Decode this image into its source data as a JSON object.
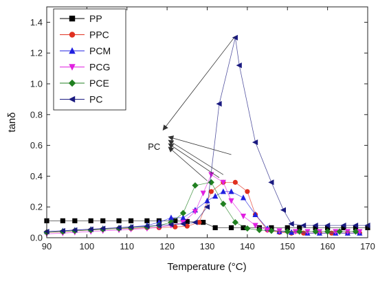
{
  "chart_data": {
    "type": "line",
    "xlabel": "Temperature (°C)",
    "ylabel": "tanδ",
    "xlim": [
      90,
      170
    ],
    "ylim": [
      0.0,
      1.5
    ],
    "xticks": [
      90,
      100,
      110,
      120,
      130,
      140,
      150,
      160,
      170
    ],
    "yticks": [
      0.0,
      0.2,
      0.4,
      0.6,
      0.8,
      1.0,
      1.2,
      1.4
    ],
    "grid": false,
    "legend_position": "top-left",
    "annotation": {
      "text": "PC",
      "source": [
        119,
        0.7
      ],
      "arrow_tips": [
        [
          137,
          1.31
        ],
        [
          136,
          0.54
        ],
        [
          134,
          0.41
        ],
        [
          133,
          0.39
        ],
        [
          130,
          0.37
        ]
      ]
    },
    "series": [
      {
        "name": "PP",
        "marker": "square",
        "color": "#000000",
        "points": [
          [
            90,
            0.11
          ],
          [
            94,
            0.11
          ],
          [
            97,
            0.11
          ],
          [
            101,
            0.11
          ],
          [
            104,
            0.11
          ],
          [
            108,
            0.11
          ],
          [
            111,
            0.11
          ],
          [
            115,
            0.11
          ],
          [
            118,
            0.11
          ],
          [
            122,
            0.11
          ],
          [
            125,
            0.105
          ],
          [
            129,
            0.1
          ],
          [
            132,
            0.065
          ],
          [
            136,
            0.065
          ],
          [
            139,
            0.065
          ],
          [
            143,
            0.065
          ],
          [
            146,
            0.065
          ],
          [
            150,
            0.065
          ],
          [
            153,
            0.065
          ],
          [
            157,
            0.065
          ],
          [
            160,
            0.065
          ],
          [
            164,
            0.065
          ],
          [
            167,
            0.065
          ],
          [
            170,
            0.065
          ]
        ]
      },
      {
        "name": "PPC",
        "marker": "circle",
        "color": "#e03020",
        "points": [
          [
            90,
            0.035
          ],
          [
            94,
            0.038
          ],
          [
            97,
            0.045
          ],
          [
            101,
            0.05
          ],
          [
            104,
            0.055
          ],
          [
            108,
            0.06
          ],
          [
            111,
            0.06
          ],
          [
            115,
            0.065
          ],
          [
            118,
            0.065
          ],
          [
            122,
            0.07
          ],
          [
            125,
            0.075
          ],
          [
            128,
            0.1
          ],
          [
            131,
            0.3
          ],
          [
            134,
            0.36
          ],
          [
            137,
            0.36
          ],
          [
            140,
            0.3
          ],
          [
            142,
            0.15
          ],
          [
            145,
            0.05
          ],
          [
            148,
            0.035
          ],
          [
            151,
            0.03
          ],
          [
            154,
            0.03
          ],
          [
            158,
            0.03
          ],
          [
            161,
            0.03
          ],
          [
            165,
            0.03
          ],
          [
            168,
            0.03
          ]
        ]
      },
      {
        "name": "PCM",
        "marker": "triangle-up",
        "color": "#2020e0",
        "points": [
          [
            90,
            0.04
          ],
          [
            94,
            0.045
          ],
          [
            97,
            0.05
          ],
          [
            101,
            0.055
          ],
          [
            104,
            0.06
          ],
          [
            108,
            0.065
          ],
          [
            111,
            0.07
          ],
          [
            115,
            0.08
          ],
          [
            118,
            0.1
          ],
          [
            121,
            0.13
          ],
          [
            124,
            0.13
          ],
          [
            127,
            0.18
          ],
          [
            130,
            0.24
          ],
          [
            132,
            0.27
          ],
          [
            134,
            0.3
          ],
          [
            136,
            0.3
          ],
          [
            139,
            0.26
          ],
          [
            142,
            0.15
          ],
          [
            145,
            0.06
          ],
          [
            148,
            0.04
          ],
          [
            151,
            0.035
          ],
          [
            155,
            0.03
          ],
          [
            158,
            0.03
          ],
          [
            162,
            0.03
          ],
          [
            165,
            0.03
          ],
          [
            168,
            0.03
          ]
        ]
      },
      {
        "name": "PCG",
        "marker": "triangle-down",
        "color": "#e020e0",
        "points": [
          [
            90,
            0.025
          ],
          [
            94,
            0.03
          ],
          [
            97,
            0.035
          ],
          [
            101,
            0.04
          ],
          [
            104,
            0.045
          ],
          [
            108,
            0.05
          ],
          [
            111,
            0.055
          ],
          [
            115,
            0.06
          ],
          [
            118,
            0.07
          ],
          [
            121,
            0.08
          ],
          [
            124,
            0.1
          ],
          [
            127,
            0.17
          ],
          [
            129,
            0.29
          ],
          [
            131,
            0.41
          ],
          [
            134,
            0.36
          ],
          [
            136,
            0.24
          ],
          [
            139,
            0.14
          ],
          [
            142,
            0.08
          ],
          [
            145,
            0.05
          ],
          [
            148,
            0.045
          ],
          [
            152,
            0.04
          ],
          [
            155,
            0.04
          ],
          [
            158,
            0.04
          ],
          [
            162,
            0.04
          ],
          [
            165,
            0.04
          ],
          [
            168,
            0.04
          ]
        ]
      },
      {
        "name": "PCE",
        "marker": "diamond",
        "color": "#208020",
        "points": [
          [
            90,
            0.035
          ],
          [
            94,
            0.04
          ],
          [
            97,
            0.045
          ],
          [
            101,
            0.05
          ],
          [
            104,
            0.055
          ],
          [
            108,
            0.06
          ],
          [
            111,
            0.065
          ],
          [
            115,
            0.07
          ],
          [
            118,
            0.08
          ],
          [
            121,
            0.1
          ],
          [
            124,
            0.16
          ],
          [
            127,
            0.34
          ],
          [
            131,
            0.36
          ],
          [
            134,
            0.22
          ],
          [
            137,
            0.1
          ],
          [
            140,
            0.06
          ],
          [
            143,
            0.05
          ],
          [
            146,
            0.045
          ],
          [
            150,
            0.04
          ],
          [
            153,
            0.04
          ],
          [
            157,
            0.04
          ],
          [
            160,
            0.04
          ],
          [
            163,
            0.04
          ],
          [
            167,
            0.04
          ]
        ]
      },
      {
        "name": "PC",
        "marker": "triangle-left",
        "color": "#1a1a80",
        "points": [
          [
            90,
            0.04
          ],
          [
            94,
            0.045
          ],
          [
            97,
            0.05
          ],
          [
            101,
            0.055
          ],
          [
            104,
            0.06
          ],
          [
            108,
            0.065
          ],
          [
            111,
            0.07
          ],
          [
            115,
            0.075
          ],
          [
            118,
            0.08
          ],
          [
            121,
            0.085
          ],
          [
            124,
            0.09
          ],
          [
            127,
            0.1
          ],
          [
            130,
            0.2
          ],
          [
            133,
            0.87
          ],
          [
            137,
            1.3
          ],
          [
            138,
            1.12
          ],
          [
            142,
            0.62
          ],
          [
            146,
            0.36
          ],
          [
            149,
            0.18
          ],
          [
            151,
            0.09
          ],
          [
            154,
            0.08
          ],
          [
            157,
            0.08
          ],
          [
            160,
            0.08
          ],
          [
            164,
            0.08
          ],
          [
            167,
            0.08
          ],
          [
            170,
            0.08
          ]
        ]
      }
    ]
  }
}
